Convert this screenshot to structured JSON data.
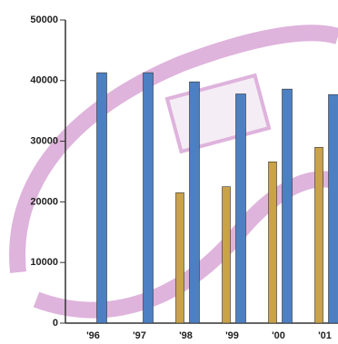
{
  "chart_data": {
    "type": "bar",
    "categories": [
      "'96",
      "'97",
      "'98",
      "'99",
      "'00",
      "'01"
    ],
    "series": [
      {
        "color": "#c9a24a",
        "values": [
          null,
          null,
          21500,
          22500,
          26600,
          29000
        ]
      },
      {
        "color": "#4d80c2",
        "values": [
          41300,
          41300,
          39800,
          37800,
          38600,
          37700
        ]
      }
    ],
    "ylim": [
      0,
      50000
    ],
    "yticks": [
      0,
      10000,
      20000,
      30000,
      40000,
      50000
    ]
  }
}
